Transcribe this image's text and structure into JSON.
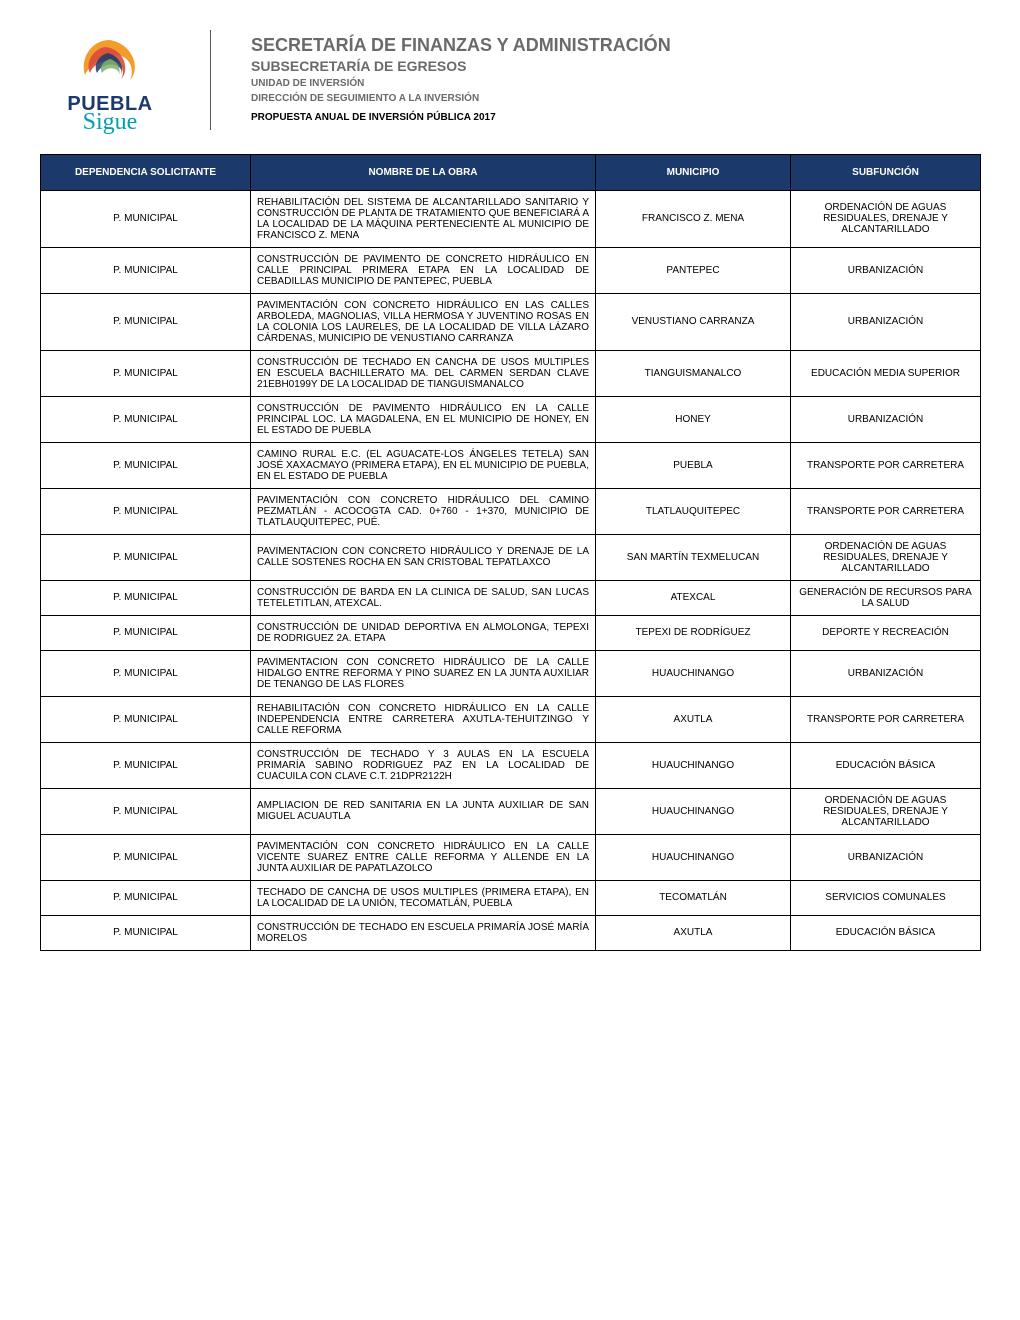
{
  "header": {
    "title": "SECRETARÍA DE FINANZAS Y ADMINISTRACIÓN",
    "subtitle": "SUBSECRETARÍA DE EGRESOS",
    "unit": "UNIDAD DE INVERSIÓN",
    "direction": "DIRECCIÓN DE SEGUIMIENTO A LA INVERSIÓN",
    "proposal": "PROPUESTA ANUAL DE INVERSIÓN PÚBLICA 2017",
    "logo_colors": {
      "orange": "#f39c2c",
      "red": "#d94b3a",
      "green": "#7fb069",
      "navy": "#1b3a6b",
      "teal": "#00a0b0"
    },
    "logo_text1": "PUEBLA",
    "logo_text2": "Sigue"
  },
  "table": {
    "header_bg": "#1b3a6b",
    "header_fg": "#ffffff",
    "columns": [
      "DEPENDENCIA SOLICITANTE",
      "NOMBRE DE LA OBRA",
      "MUNICIPIO",
      "SUBFUNCIÓN"
    ],
    "rows": [
      {
        "dep": "P. MUNICIPAL",
        "obra": "REHABILITACIÓN DEL SISTEMA DE ALCANTARILLADO SANITARIO Y CONSTRUCCIÓN DE PLANTA DE TRATAMIENTO QUE BENEFICIARÁ A LA LOCALIDAD DE LA MÁQUINA PERTENECIENTE AL MUNICIPIO DE FRANCISCO Z. MENA",
        "mun": "FRANCISCO Z. MENA",
        "sub": "ORDENACIÓN DE AGUAS RESIDUALES, DRENAJE Y ALCANTARILLADO"
      },
      {
        "dep": "P. MUNICIPAL",
        "obra": "CONSTRUCCIÓN DE PAVIMENTO DE CONCRETO HIDRÁULICO EN CALLE PRINCIPAL PRIMERA ETAPA EN LA LOCALIDAD DE CEBADILLAS MUNICIPIO DE PANTEPEC, PUEBLA",
        "mun": "PANTEPEC",
        "sub": "URBANIZACIÓN"
      },
      {
        "dep": "P. MUNICIPAL",
        "obra": "PAVIMENTACIÓN CON CONCRETO HIDRÁULICO EN LAS CALLES ARBOLEDA, MAGNOLIAS, VILLA HERMOSA Y JUVENTINO ROSAS EN LA COLONIA LOS LAURELES, DE LA LOCALIDAD DE VILLA LÁZARO CÁRDENAS, MUNICIPIO DE VENUSTIANO CARRANZA",
        "mun": "VENUSTIANO CARRANZA",
        "sub": "URBANIZACIÓN"
      },
      {
        "dep": "P. MUNICIPAL",
        "obra": "CONSTRUCCIÓN DE TECHADO EN CANCHA DE USOS MULTIPLES EN ESCUELA BACHILLERATO MA. DEL CARMEN SERDAN CLAVE 21EBH0199Y DE LA LOCALIDAD DE TIANGUISMANALCO",
        "mun": "TIANGUISMANALCO",
        "sub": "EDUCACIÓN MEDIA SUPERIOR"
      },
      {
        "dep": "P. MUNICIPAL",
        "obra": "CONSTRUCCIÓN DE PAVIMENTO HIDRÁULICO EN LA CALLE PRINCIPAL LOC. LA MAGDALENA, EN EL MUNICIPIO DE HONEY, EN EL ESTADO DE PUEBLA",
        "mun": "HONEY",
        "sub": "URBANIZACIÓN"
      },
      {
        "dep": "P. MUNICIPAL",
        "obra": "CAMINO RURAL E.C. (EL AGUACATE-LOS ÁNGELES TETELA) SAN JOSÉ XAXACMAYO (PRIMERA ETAPA), EN EL MUNICIPIO DE PUEBLA, EN EL ESTADO DE PUEBLA",
        "mun": "PUEBLA",
        "sub": "TRANSPORTE POR CARRETERA"
      },
      {
        "dep": "P. MUNICIPAL",
        "obra": "PAVIMENTACIÓN CON CONCRETO HIDRÁULICO DEL CAMINO PEZMATLÁN - ACOCOGTA CAD. 0+760 - 1+370, MUNICIPIO DE TLATLAUQUITEPEC, PUÉ.",
        "mun": "TLATLAUQUITEPEC",
        "sub": "TRANSPORTE POR CARRETERA"
      },
      {
        "dep": "P. MUNICIPAL",
        "obra": "PAVIMENTACION CON CONCRETO HIDRÁULICO Y DRENAJE DE LA CALLE SOSTENES ROCHA EN SAN CRISTOBAL TEPATLAXCO",
        "mun": "SAN MARTÍN TEXMELUCAN",
        "sub": "ORDENACIÓN DE AGUAS RESIDUALES, DRENAJE Y ALCANTARILLADO"
      },
      {
        "dep": "P. MUNICIPAL",
        "obra": "CONSTRUCCIÓN DE BARDA EN LA CLINICA DE SALUD, SAN LUCAS TETELETITLAN, ATEXCAL.",
        "mun": "ATEXCAL",
        "sub": "GENERACIÓN DE RECURSOS PARA LA SALUD"
      },
      {
        "dep": "P. MUNICIPAL",
        "obra": "CONSTRUCCIÓN DE UNIDAD DEPORTIVA EN ALMOLONGA, TEPEXI DE RODRIGUEZ 2A. ETAPA",
        "mun": "TEPEXI DE RODRÍGUEZ",
        "sub": "DEPORTE Y RECREACIÓN"
      },
      {
        "dep": "P. MUNICIPAL",
        "obra": "PAVIMENTACION CON CONCRETO HIDRÁULICO DE LA CALLE HIDALGO ENTRE REFORMA Y PINO SUAREZ EN LA JUNTA AUXILIAR DE TENANGO DE LAS FLORES",
        "mun": "HUAUCHINANGO",
        "sub": "URBANIZACIÓN"
      },
      {
        "dep": "P. MUNICIPAL",
        "obra": "REHABILITACIÓN CON CONCRETO HIDRÁULICO EN LA CALLE INDEPENDENCIA ENTRE CARRETERA AXUTLA-TEHUITZINGO Y CALLE REFORMA",
        "mun": "AXUTLA",
        "sub": "TRANSPORTE POR CARRETERA"
      },
      {
        "dep": "P. MUNICIPAL",
        "obra": "CONSTRUCCIÓN DE TECHADO Y 3 AULAS EN LA ESCUELA PRIMARÍA SABINO RODRIGUEZ PAZ EN LA LOCALIDAD DE CUACUILA CON CLAVE C.T. 21DPR2122H",
        "mun": "HUAUCHINANGO",
        "sub": "EDUCACIÓN BÁSICA"
      },
      {
        "dep": "P. MUNICIPAL",
        "obra": "AMPLIACION DE RED SANITARIA EN LA JUNTA AUXILIAR DE SAN MIGUEL ACUAUTLA",
        "mun": "HUAUCHINANGO",
        "sub": "ORDENACIÓN DE AGUAS RESIDUALES, DRENAJE Y ALCANTARILLADO"
      },
      {
        "dep": "P. MUNICIPAL",
        "obra": "PAVIMENTACIÓN CON CONCRETO HIDRÁULICO EN LA CALLE VICENTE SUAREZ ENTRE CALLE REFORMA Y ALLENDE EN LA JUNTA AUXILIAR DE PAPATLAZOLCO",
        "mun": "HUAUCHINANGO",
        "sub": "URBANIZACIÓN"
      },
      {
        "dep": "P. MUNICIPAL",
        "obra": "TECHADO DE CANCHA DE USOS MULTIPLES (PRIMERA ETAPA), EN LA LOCALIDAD DE LA UNIÓN, TECOMATLÁN, PUEBLA",
        "mun": "TECOMATLÁN",
        "sub": "SERVICIOS COMUNALES"
      },
      {
        "dep": "P. MUNICIPAL",
        "obra": "CONSTRUCCIÓN DE TECHADO EN ESCUELA PRIMARÍA JOSÉ MARÍA MORELOS",
        "mun": "AXUTLA",
        "sub": "EDUCACIÓN BÁSICA"
      }
    ]
  }
}
